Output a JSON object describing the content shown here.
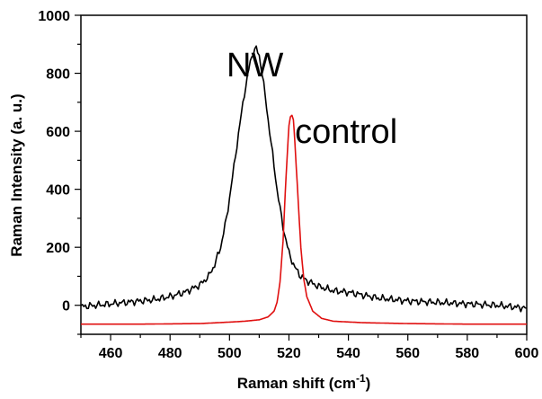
{
  "chart_data": {
    "type": "line",
    "xlabel": "Raman shift (cm",
    "xlabel_superscript": "-1",
    "xlabel_suffix": ")",
    "ylabel": "Raman Intensity (a. u.)",
    "xlim": [
      450,
      600
    ],
    "ylim": [
      -100,
      1000
    ],
    "xticks": [
      460,
      480,
      500,
      520,
      540,
      560,
      580,
      600
    ],
    "yticks": [
      0,
      200,
      400,
      600,
      800,
      1000
    ],
    "grid": false,
    "annotations": [
      {
        "text": "NW",
        "x": 499,
        "y": 790
      },
      {
        "text": "control",
        "x": 522,
        "y": 560
      }
    ],
    "series": [
      {
        "color": "#000000",
        "x": [
          450,
          455,
          460,
          465,
          470,
          475,
          480,
          485,
          490,
          493,
          495,
          497,
          499,
          501,
          503,
          505,
          507,
          508,
          509,
          510,
          511,
          512,
          514,
          516,
          518,
          520,
          522,
          524,
          526,
          530,
          535,
          540,
          545,
          550,
          560,
          570,
          580,
          590,
          600
        ],
        "y": [
          -5,
          0,
          5,
          10,
          15,
          20,
          30,
          45,
          70,
          100,
          140,
          200,
          300,
          440,
          590,
          730,
          840,
          875,
          885,
          860,
          800,
          720,
          560,
          400,
          270,
          180,
          130,
          100,
          85,
          65,
          50,
          45,
          35,
          25,
          15,
          10,
          5,
          0,
          -10
        ]
      },
      {
        "color": "#e01010",
        "x": [
          450,
          470,
          490,
          500,
          505,
          510,
          513,
          515,
          516,
          517,
          518,
          519,
          520,
          520.5,
          521,
          521.5,
          522,
          523,
          524,
          525,
          526,
          528,
          531,
          535,
          545,
          560,
          580,
          600
        ],
        "y": [
          -65,
          -65,
          -63,
          -58,
          -55,
          -50,
          -40,
          -20,
          10,
          80,
          220,
          440,
          620,
          650,
          655,
          640,
          560,
          380,
          200,
          90,
          30,
          -20,
          -45,
          -55,
          -60,
          -63,
          -65,
          -65
        ]
      }
    ]
  }
}
